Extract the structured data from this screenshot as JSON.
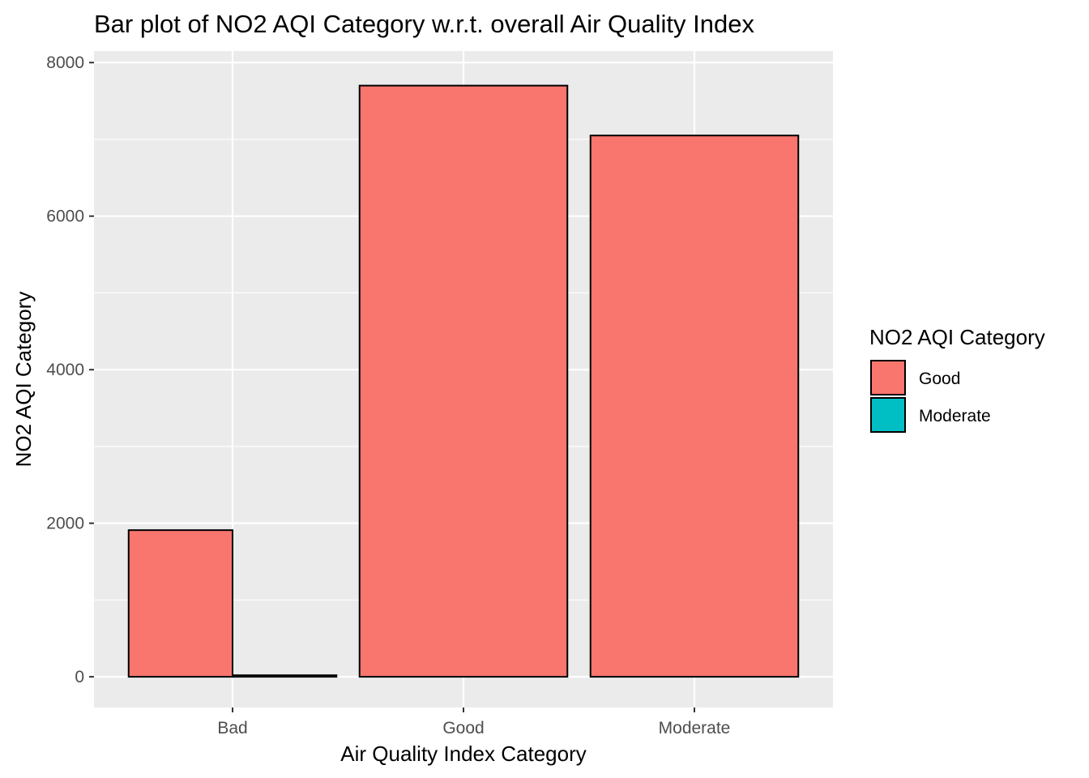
{
  "chart_data": {
    "type": "bar",
    "title": "Bar plot of NO2 AQI Category w.r.t. overall Air Quality Index",
    "xlabel": "Air Quality Index Category",
    "ylabel": "NO2 AQI Category",
    "categories": [
      "Bad",
      "Good",
      "Moderate"
    ],
    "series": [
      {
        "name": "Good",
        "color": "#F8766D",
        "values": [
          1910,
          7700,
          7050
        ]
      },
      {
        "name": "Moderate",
        "color": "#00BFC4",
        "values": [
          20,
          0,
          0
        ]
      }
    ],
    "position": "dodge",
    "ylim": [
      -400,
      8150
    ],
    "yticks": [
      0,
      2000,
      4000,
      6000,
      8000
    ],
    "ytick_labels": [
      "0",
      "2000",
      "4000",
      "6000",
      "8000"
    ],
    "grid": true,
    "panel_background": "#EBEBEB",
    "legend": {
      "title": "NO2 AQI Category",
      "placement": "right",
      "entries": [
        "Good",
        "Moderate"
      ]
    }
  }
}
